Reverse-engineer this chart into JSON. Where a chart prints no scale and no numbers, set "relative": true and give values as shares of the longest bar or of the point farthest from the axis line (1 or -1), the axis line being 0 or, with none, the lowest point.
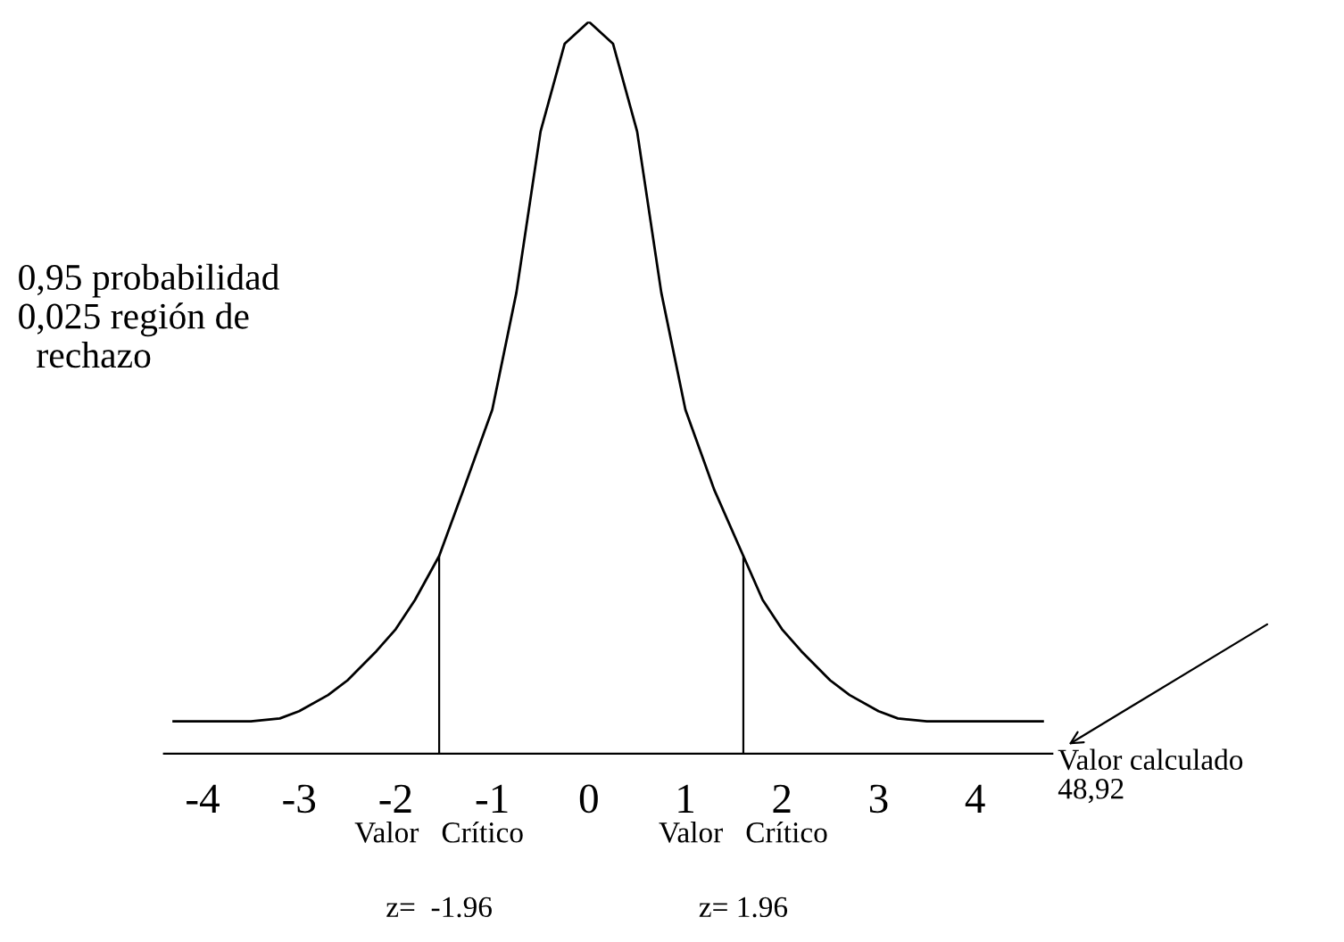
{
  "chart_data": {
    "type": "line",
    "relative": true,
    "x": [
      -4.3,
      -3.5,
      -3.2,
      -3,
      -2.7,
      -2.5,
      -2.2,
      -2,
      -1.8,
      -1.55,
      -1.3,
      -1,
      -0.75,
      -0.5,
      -0.25,
      0,
      0.25,
      0.5,
      0.75,
      1,
      1.3,
      1.6,
      1.8,
      2,
      2.2,
      2.5,
      2.7,
      3,
      3.2,
      3.5,
      4.7
    ],
    "series": [
      {
        "color": "#000000",
        "values": [
          0.044,
          0.044,
          0.048,
          0.058,
          0.08,
          0.1,
          0.14,
          0.17,
          0.21,
          0.27,
          0.36,
          0.47,
          0.63,
          0.85,
          0.97,
          1,
          0.97,
          0.85,
          0.63,
          0.47,
          0.36,
          0.27,
          0.21,
          0.17,
          0.14,
          0.1,
          0.08,
          0.058,
          0.048,
          0.044,
          0.044
        ]
      }
    ],
    "xlim": [
      -4.4,
      4.8
    ],
    "xticks": [
      -4,
      -3,
      -2,
      -1,
      0,
      1,
      2,
      3,
      4
    ],
    "ref_lines": [
      {
        "axis": "x",
        "value": -1.55,
        "color": "#000000"
      },
      {
        "axis": "x",
        "value": 1.6,
        "color": "#000000"
      }
    ],
    "annotations": [
      "0,95 probabilidad\n0,025 región de\n  rechazo",
      "Valor calculado\n48,92",
      "Valor   Crítico\n\nz=  -1.96",
      "Valor   Crítico\n\nz= 1.96"
    ],
    "grid": false,
    "legend": false,
    "marker": "none",
    "line_style": "solid"
  }
}
